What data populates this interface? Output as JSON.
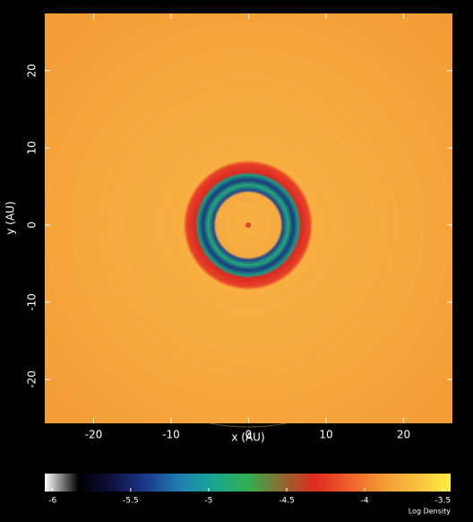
{
  "chart_data": {
    "type": "heatmap",
    "xlabel": "x (AU)",
    "ylabel": "y (AU)",
    "xlim": [
      -26.3,
      26.3
    ],
    "ylim": [
      -25.7,
      27.4
    ],
    "xticks": [
      -20,
      -10,
      0,
      10,
      20
    ],
    "yticks": [
      -20,
      -10,
      0,
      10,
      20
    ],
    "colorbar": {
      "label": "Log Density",
      "clim": [
        -6.05,
        -3.45
      ],
      "ticks": [
        -6,
        -5.5,
        -5,
        -4.5,
        -4,
        -3.5
      ],
      "colors": [
        "#ffffff",
        "#000000",
        "#101040",
        "#1b3a8c",
        "#1f7fb0",
        "#18a890",
        "#2fb050",
        "#8c6a30",
        "#e02a20",
        "#f0602a",
        "#f59a35",
        "#f8c040",
        "#fbee40"
      ]
    }
  }
}
